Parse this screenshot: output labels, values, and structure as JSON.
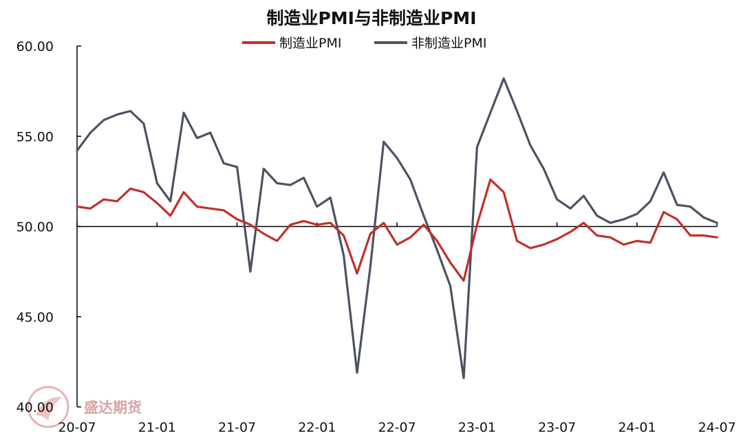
{
  "chart_data": {
    "type": "line",
    "title": "制造业PMI与非制造业PMI",
    "xlabel": "",
    "ylabel": "",
    "ylim": [
      40,
      60
    ],
    "yticks": [
      "40.00",
      "45.00",
      "50.00",
      "55.00",
      "60.00"
    ],
    "x_tick_labels": [
      "20-07",
      "21-01",
      "21-07",
      "22-01",
      "22-07",
      "23-01",
      "23-07",
      "24-01",
      "24-07"
    ],
    "x_tick_index": [
      0,
      6,
      12,
      18,
      24,
      30,
      36,
      42,
      48
    ],
    "baseline": 50,
    "legend_position": "top-center",
    "grid": false,
    "x": [
      "20-07",
      "20-08",
      "20-09",
      "20-10",
      "20-11",
      "20-12",
      "21-01",
      "21-02",
      "21-03",
      "21-04",
      "21-05",
      "21-06",
      "21-07",
      "21-08",
      "21-09",
      "21-10",
      "21-11",
      "21-12",
      "22-01",
      "22-02",
      "22-03",
      "22-04",
      "22-05",
      "22-06",
      "22-07",
      "22-08",
      "22-09",
      "22-10",
      "22-11",
      "22-12",
      "23-01",
      "23-02",
      "23-03",
      "23-04",
      "23-05",
      "23-06",
      "23-07",
      "23-08",
      "23-09",
      "23-10",
      "23-11",
      "23-12",
      "24-01",
      "24-02",
      "24-03",
      "24-04",
      "24-05",
      "24-06",
      "24-07"
    ],
    "series": [
      {
        "name": "制造业PMI",
        "color": "#c0302a",
        "values": [
          51.1,
          51.0,
          51.5,
          51.4,
          52.1,
          51.9,
          51.3,
          50.6,
          51.9,
          51.1,
          51.0,
          50.9,
          50.4,
          50.1,
          49.6,
          49.2,
          50.1,
          50.3,
          50.1,
          50.2,
          49.5,
          47.4,
          49.6,
          50.2,
          49.0,
          49.4,
          50.1,
          49.2,
          48.0,
          47.0,
          50.1,
          52.6,
          51.9,
          49.2,
          48.8,
          49.0,
          49.3,
          49.7,
          50.2,
          49.5,
          49.4,
          49.0,
          49.2,
          49.1,
          50.8,
          50.4,
          49.5,
          49.5,
          49.4
        ]
      },
      {
        "name": "非制造业PMI",
        "color": "#4b5260",
        "values": [
          54.2,
          55.2,
          55.9,
          56.2,
          56.4,
          55.7,
          52.4,
          51.4,
          56.3,
          54.9,
          55.2,
          53.5,
          53.3,
          47.5,
          53.2,
          52.4,
          52.3,
          52.7,
          51.1,
          51.6,
          48.4,
          41.9,
          47.8,
          54.7,
          53.8,
          52.6,
          50.6,
          48.7,
          46.7,
          41.6,
          54.4,
          56.3,
          58.2,
          56.4,
          54.5,
          53.2,
          51.5,
          51.0,
          51.7,
          50.6,
          50.2,
          50.4,
          50.7,
          51.4,
          53.0,
          51.2,
          51.1,
          50.5,
          50.2
        ]
      }
    ]
  },
  "watermark": {
    "text": "盛达期货"
  }
}
